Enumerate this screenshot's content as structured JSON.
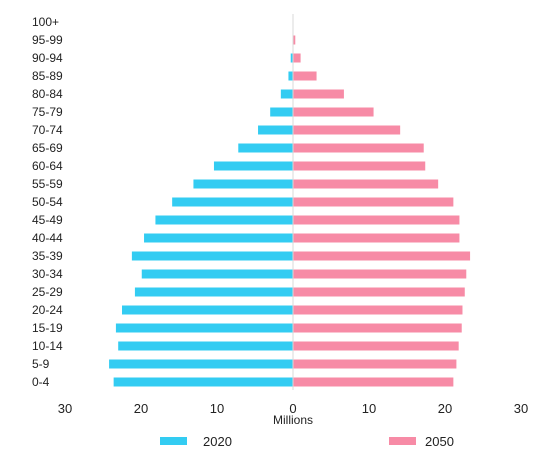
{
  "chart_data": {
    "type": "bar",
    "orientation": "horizontal-diverging",
    "title": "",
    "xlabel": "Millions",
    "ylabel": "",
    "xlim": [
      -30,
      30
    ],
    "x_ticks": [
      {
        "value": -30,
        "label": "30"
      },
      {
        "value": -20,
        "label": "20"
      },
      {
        "value": -10,
        "label": "10"
      },
      {
        "value": 0,
        "label": "0"
      },
      {
        "value": 10,
        "label": "10"
      },
      {
        "value": 20,
        "label": "20"
      },
      {
        "value": 30,
        "label": "30"
      }
    ],
    "grid": false,
    "legend_position": "bottom",
    "categories": [
      "100+",
      "95-99",
      "90-94",
      "85-89",
      "80-84",
      "75-79",
      "70-74",
      "65-69",
      "60-64",
      "55-59",
      "50-54",
      "45-49",
      "40-44",
      "35-39",
      "30-34",
      "25-29",
      "20-24",
      "15-19",
      "10-14",
      "5-9",
      "0-4"
    ],
    "series": [
      {
        "name": "2020",
        "side": "left",
        "color": "#33ccf2",
        "values": [
          0.02,
          0.05,
          0.3,
          0.6,
          1.6,
          3.0,
          4.6,
          7.2,
          10.4,
          13.1,
          15.9,
          18.1,
          19.6,
          21.2,
          19.9,
          20.8,
          22.5,
          23.3,
          23.0,
          24.2,
          23.6
        ]
      },
      {
        "name": "2050",
        "side": "right",
        "color": "#f78ba6",
        "values": [
          0.05,
          0.3,
          1.0,
          3.1,
          6.7,
          10.6,
          14.1,
          17.2,
          17.4,
          19.1,
          21.1,
          21.9,
          21.9,
          23.3,
          22.8,
          22.6,
          22.3,
          22.2,
          21.8,
          21.5,
          21.1
        ]
      }
    ]
  }
}
